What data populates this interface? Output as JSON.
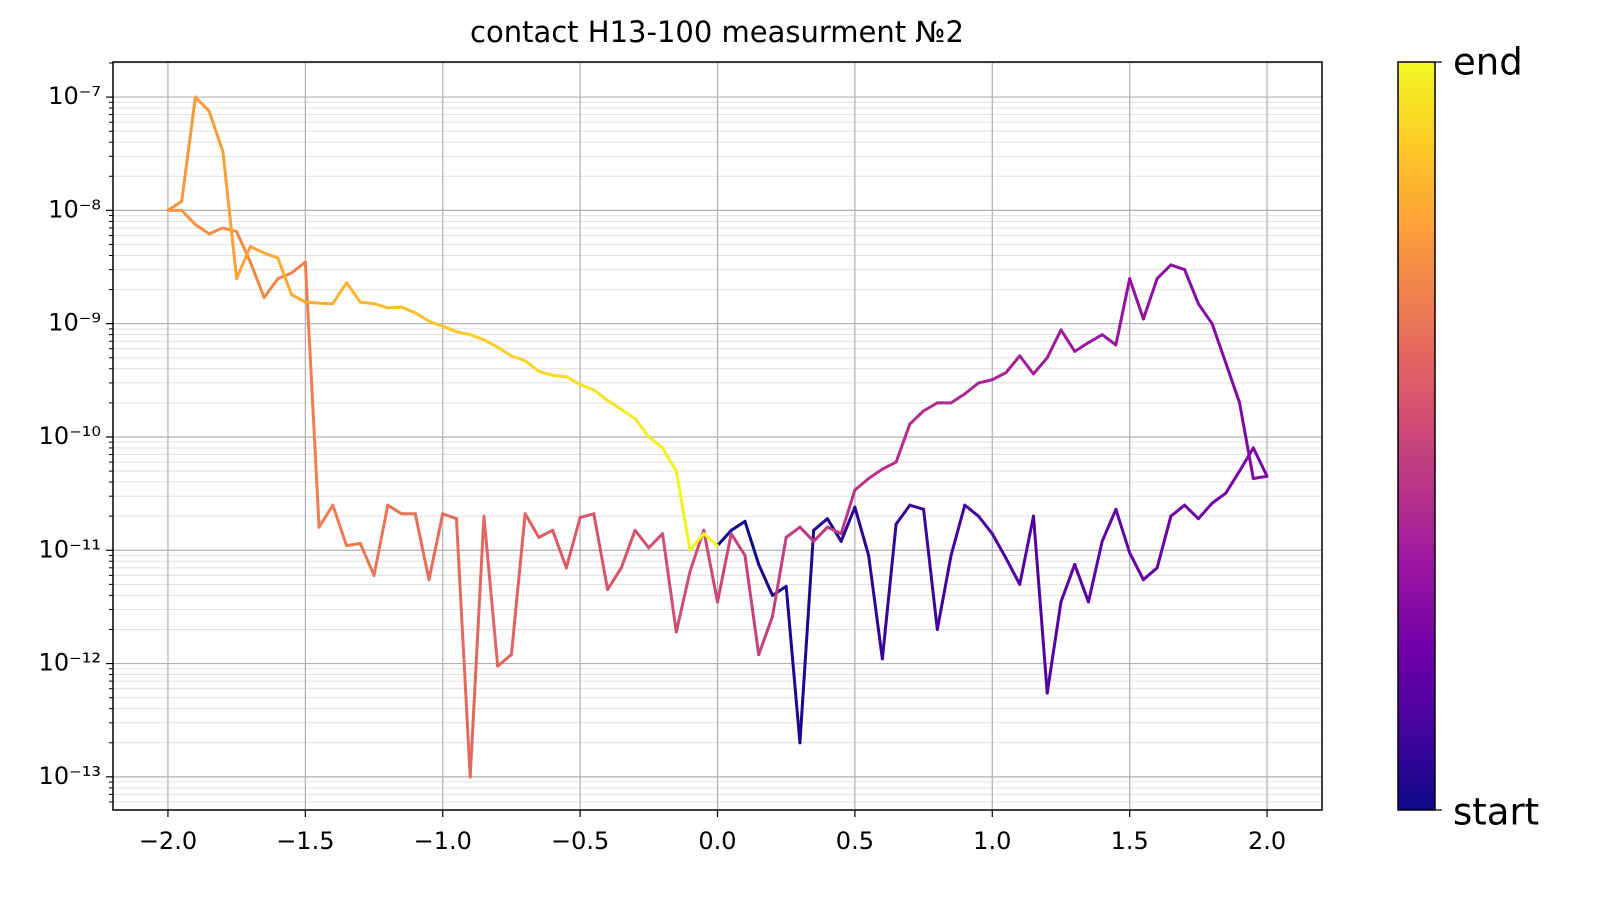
{
  "chart_data": {
    "type": "line",
    "title": "contact H13-100 measurment №2",
    "yscale": "log",
    "grid": true,
    "minor_grid": true,
    "colormap": [
      "#0d0887",
      "#46039f",
      "#7201a8",
      "#9c179e",
      "#bd3786",
      "#d8576b",
      "#ed7953",
      "#fb9f3a",
      "#fdca26",
      "#f0f921"
    ],
    "colorbar_labels": [
      "start",
      "end"
    ],
    "xlim": [
      -2.2,
      2.2
    ],
    "xticks": [
      {
        "value": -2,
        "label": "−2.0"
      },
      {
        "value": -1.5,
        "label": "−1.5"
      },
      {
        "value": -1,
        "label": "−1.0"
      },
      {
        "value": -0.5,
        "label": "−0.5"
      },
      {
        "value": 0,
        "label": "0.0"
      },
      {
        "value": 0.5,
        "label": "0.5"
      },
      {
        "value": 1,
        "label": "1.0"
      },
      {
        "value": 1.5,
        "label": "1.5"
      },
      {
        "value": 2,
        "label": "2.0"
      }
    ],
    "ylim": [
      5.1e-14,
      2.04e-07
    ],
    "yticks": [
      {
        "value": 1e-13,
        "label": "10⁻¹³"
      },
      {
        "value": 1e-12,
        "label": "10⁻¹²"
      },
      {
        "value": 1e-11,
        "label": "10⁻¹¹"
      },
      {
        "value": 1e-10,
        "label": "10⁻¹⁰"
      },
      {
        "value": 1e-09,
        "label": "10⁻⁹"
      },
      {
        "value": 1e-08,
        "label": "10⁻⁸"
      },
      {
        "value": 1e-07,
        "label": "10⁻⁷"
      }
    ],
    "x": [
      0,
      0.05,
      0.1,
      0.15,
      0.2,
      0.25,
      0.3,
      0.35,
      0.4,
      0.45,
      0.5,
      0.55,
      0.6,
      0.65,
      0.7,
      0.75,
      0.8,
      0.85,
      0.9,
      0.95,
      1,
      1.05,
      1.1,
      1.15,
      1.2,
      1.25,
      1.3,
      1.35,
      1.4,
      1.45,
      1.5,
      1.55,
      1.6,
      1.65,
      1.7,
      1.75,
      1.8,
      1.85,
      1.9,
      1.95,
      2,
      1.95,
      1.9,
      1.85,
      1.8,
      1.75,
      1.7,
      1.65,
      1.6,
      1.55,
      1.5,
      1.45,
      1.4,
      1.35,
      1.3,
      1.25,
      1.2,
      1.15,
      1.1,
      1.05,
      1,
      0.95,
      0.9,
      0.85,
      0.8,
      0.75,
      0.7,
      0.65,
      0.6,
      0.55,
      0.5,
      0.45,
      0.4,
      0.35,
      0.3,
      0.25,
      0.2,
      0.15,
      0.1,
      0.05,
      0,
      -0.05,
      -0.1,
      -0.15,
      -0.2,
      -0.25,
      -0.3,
      -0.35,
      -0.4,
      -0.45,
      -0.5,
      -0.55,
      -0.6,
      -0.65,
      -0.7,
      -0.75,
      -0.8,
      -0.85,
      -0.9,
      -0.95,
      -1,
      -1.05,
      -1.1,
      -1.15,
      -1.2,
      -1.25,
      -1.3,
      -1.35,
      -1.4,
      -1.45,
      -1.5,
      -1.55,
      -1.6,
      -1.65,
      -1.7,
      -1.75,
      -1.8,
      -1.85,
      -1.9,
      -1.95,
      -2,
      -1.95,
      -1.9,
      -1.85,
      -1.8,
      -1.75,
      -1.7,
      -1.65,
      -1.6,
      -1.55,
      -1.5,
      -1.45,
      -1.4,
      -1.35,
      -1.3,
      -1.25,
      -1.2,
      -1.15,
      -1.1,
      -1.05,
      -1,
      -0.95,
      -0.9,
      -0.85,
      -0.8,
      -0.75,
      -0.7,
      -0.65,
      -0.6,
      -0.55,
      -0.5,
      -0.45,
      -0.4,
      -0.35,
      -0.3,
      -0.25,
      -0.2,
      -0.15,
      -0.1,
      -0.05,
      0
    ],
    "values": [
      1.1e-11,
      1.5e-11,
      1.8e-11,
      7.5e-12,
      4e-12,
      4.8e-12,
      2e-13,
      1.5e-11,
      1.9e-11,
      1.2e-11,
      2.4e-11,
      9e-12,
      1.1e-12,
      1.7e-11,
      2.5e-11,
      2.3e-11,
      2e-12,
      9e-12,
      2.5e-11,
      2e-11,
      1.4e-11,
      8.5e-12,
      5e-12,
      2e-11,
      5.5e-13,
      3.5e-12,
      7.5e-12,
      3.5e-12,
      1.2e-11,
      2.3e-11,
      9.5e-12,
      5.5e-12,
      7e-12,
      2e-11,
      2.5e-11,
      1.9e-11,
      2.6e-11,
      3.2e-11,
      5e-11,
      8e-11,
      4.5e-11,
      4.3e-11,
      2e-10,
      4.5e-10,
      1e-09,
      1.5e-09,
      3e-09,
      3.3e-09,
      2.5e-09,
      1.1e-09,
      2.5e-09,
      6.5e-10,
      8e-10,
      6.8e-10,
      5.7e-10,
      8.8e-10,
      5e-10,
      3.6e-10,
      5.2e-10,
      3.7e-10,
      3.2e-10,
      3e-10,
      2.4e-10,
      2e-10,
      2e-10,
      1.7e-10,
      1.3e-10,
      6e-11,
      5.2e-11,
      4.3e-11,
      3.4e-11,
      1.4e-11,
      1.6e-11,
      1.2e-11,
      1.6e-11,
      1.3e-11,
      2.6e-12,
      1.2e-12,
      9e-12,
      1.4e-11,
      3.5e-12,
      1.5e-11,
      6.5e-12,
      1.9e-12,
      1.4e-11,
      1.05e-11,
      1.5e-11,
      7e-12,
      4.5e-12,
      2.1e-11,
      1.95e-11,
      7e-12,
      1.5e-11,
      1.3e-11,
      2.1e-11,
      1.2e-12,
      9.5e-13,
      2e-11,
      1e-13,
      1.9e-11,
      2.1e-11,
      5.5e-12,
      2.1e-11,
      2.1e-11,
      2.5e-11,
      6e-12,
      1.15e-11,
      1.1e-11,
      2.5e-11,
      1.6e-11,
      3.5e-09,
      2.8e-09,
      2.5e-09,
      1.7e-09,
      3.5e-09,
      6.5e-09,
      7e-09,
      6.2e-09,
      7.5e-09,
      1e-08,
      1e-08,
      1.2e-08,
      1e-07,
      7.5e-08,
      3.3e-08,
      2.5e-09,
      4.8e-09,
      4.2e-09,
      3.8e-09,
      1.8e-09,
      1.55e-09,
      1.52e-09,
      1.5e-09,
      2.3e-09,
      1.55e-09,
      1.5e-09,
      1.38e-09,
      1.4e-09,
      1.25e-09,
      1.05e-09,
      9.5e-10,
      8.5e-10,
      8e-10,
      7.2e-10,
      6.2e-10,
      5.2e-10,
      4.7e-10,
      3.8e-10,
      3.5e-10,
      3.4e-10,
      2.9e-10,
      2.6e-10,
      2.1e-10,
      1.75e-10,
      1.45e-10,
      1e-10,
      8e-11,
      5e-11,
      1e-11,
      1.4e-11,
      1.1e-11
    ]
  }
}
